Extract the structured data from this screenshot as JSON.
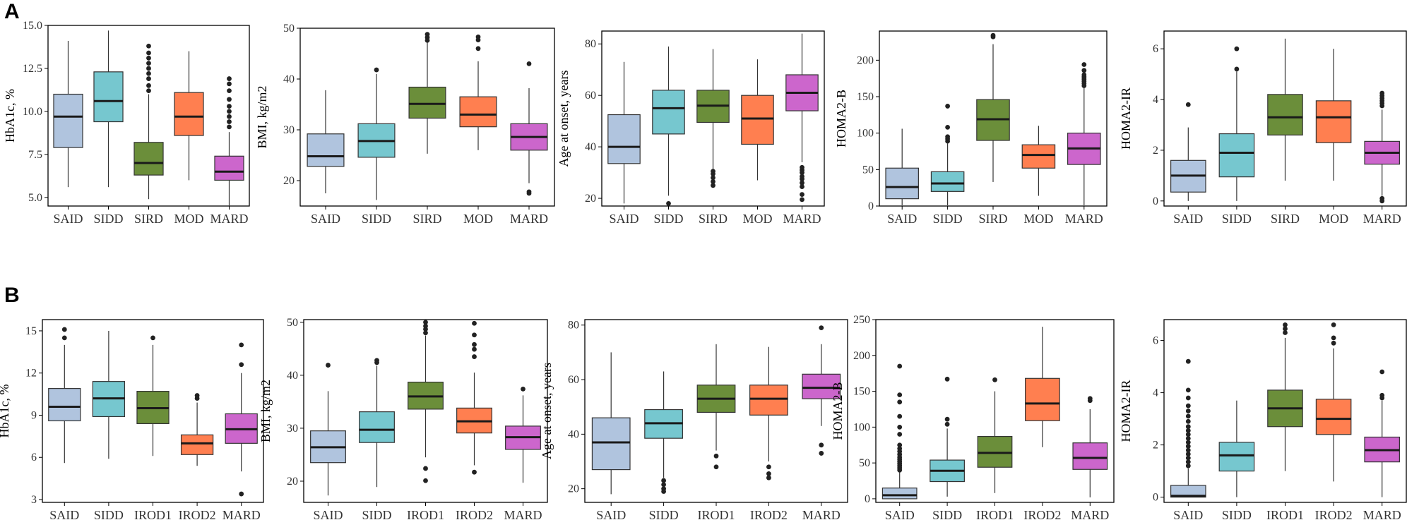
{
  "panels": [
    {
      "letter": "A"
    },
    {
      "letter": "B"
    }
  ],
  "colors": {
    "SAID": "#b0c4de",
    "SIDD": "#76c7cf",
    "SIRD": "#6b8e3a",
    "MOD": "#ff7f50",
    "MARD": "#cc66cc",
    "IROD1": "#6b8e3a",
    "IROD2": "#ff7f50",
    "outline": "#333333",
    "median": "#1a1a1a",
    "outlier": "#222222"
  },
  "chart_data": [
    {
      "type": "box",
      "panel": "A",
      "ylabel": "HbA1c, %",
      "ylim": [
        4.5,
        15.0
      ],
      "yticks": [
        5.0,
        7.5,
        10.0,
        12.5,
        15.0
      ],
      "tick_labels": [
        "5.0",
        "7.5",
        "10.0",
        "12.5",
        "15.0"
      ],
      "categories": [
        "SAID",
        "SIDD",
        "SIRD",
        "MOD",
        "MARD"
      ],
      "boxes": [
        {
          "min": 5.6,
          "q1": 7.9,
          "median": 9.7,
          "q3": 11.0,
          "max": 14.1,
          "outliers": []
        },
        {
          "min": 5.6,
          "q1": 9.4,
          "median": 10.6,
          "q3": 12.3,
          "max": 14.7,
          "outliers": []
        },
        {
          "min": 4.9,
          "q1": 6.3,
          "median": 7.0,
          "q3": 8.2,
          "max": 11.0,
          "outliers": [
            11.2,
            11.5,
            11.9,
            12.2,
            12.5,
            12.8,
            13.1,
            13.4,
            13.8
          ]
        },
        {
          "min": 6.0,
          "q1": 8.6,
          "median": 9.7,
          "q3": 11.1,
          "max": 13.5,
          "outliers": []
        },
        {
          "min": 4.5,
          "q1": 6.0,
          "median": 6.5,
          "q3": 7.4,
          "max": 8.8,
          "outliers": [
            9.1,
            9.4,
            9.7,
            10.0,
            10.3,
            10.7,
            11.2,
            11.6,
            11.9
          ]
        }
      ]
    },
    {
      "type": "box",
      "panel": "A",
      "ylabel": "BMI, kg/m2",
      "ylim": [
        15,
        50
      ],
      "yticks": [
        20,
        30,
        40,
        50
      ],
      "tick_labels": [
        "20",
        "30",
        "40",
        "50"
      ],
      "categories": [
        "SAID",
        "SIDD",
        "SIRD",
        "MOD",
        "MARD"
      ],
      "boxes": [
        {
          "min": 17.5,
          "q1": 22.8,
          "median": 24.8,
          "q3": 29.2,
          "max": 37.8,
          "outliers": []
        },
        {
          "min": 16.2,
          "q1": 24.6,
          "median": 27.8,
          "q3": 31.2,
          "max": 41.0,
          "outliers": [
            41.8
          ]
        },
        {
          "min": 25.3,
          "q1": 32.3,
          "median": 35.1,
          "q3": 38.4,
          "max": 47.2,
          "outliers": [
            47.6,
            48.2,
            48.8
          ]
        },
        {
          "min": 26.0,
          "q1": 30.6,
          "median": 33.0,
          "q3": 36.5,
          "max": 43.5,
          "outliers": [
            46.0,
            47.7,
            48.3
          ]
        },
        {
          "min": 19.5,
          "q1": 26.0,
          "median": 28.6,
          "q3": 31.2,
          "max": 38.2,
          "outliers": [
            17.5,
            17.8,
            43.0
          ]
        }
      ]
    },
    {
      "type": "box",
      "panel": "A",
      "ylabel": "Age at onset, years",
      "ylim": [
        17,
        85
      ],
      "yticks": [
        20,
        40,
        60,
        80
      ],
      "tick_labels": [
        "20",
        "40",
        "60",
        "80"
      ],
      "categories": [
        "SAID",
        "SIDD",
        "SIRD",
        "MOD",
        "MARD"
      ],
      "boxes": [
        {
          "min": 18.0,
          "q1": 33.5,
          "median": 40.0,
          "q3": 52.5,
          "max": 73.0,
          "outliers": []
        },
        {
          "min": 21.0,
          "q1": 45.0,
          "median": 55.0,
          "q3": 62.0,
          "max": 79.0,
          "outliers": [
            18.0
          ]
        },
        {
          "min": 31.0,
          "q1": 49.5,
          "median": 56.0,
          "q3": 62.0,
          "max": 78.0,
          "outliers": [
            25.0,
            26.5,
            28.0,
            29.5,
            30.5
          ]
        },
        {
          "min": 27.0,
          "q1": 41.0,
          "median": 51.0,
          "q3": 60.0,
          "max": 74.0,
          "outliers": []
        },
        {
          "min": 34.0,
          "q1": 54.0,
          "median": 61.0,
          "q3": 68.0,
          "max": 84.0,
          "outliers": [
            19.5,
            21.5,
            24.5,
            26.0,
            27.5,
            28.5,
            30.0,
            31.0,
            32.0
          ]
        }
      ]
    },
    {
      "type": "box",
      "panel": "A",
      "ylabel": "HOMA2-B",
      "ylim": [
        0,
        240
      ],
      "yticks": [
        0,
        50,
        100,
        150,
        200
      ],
      "tick_labels": [
        "0",
        "50",
        "100",
        "150",
        "200"
      ],
      "categories": [
        "SAID",
        "SIDD",
        "SIRD",
        "MOD",
        "MARD"
      ],
      "boxes": [
        {
          "min": 1.0,
          "q1": 10.0,
          "median": 26.0,
          "q3": 52.0,
          "max": 106.0,
          "outliers": []
        },
        {
          "min": 1.0,
          "q1": 20.0,
          "median": 31.0,
          "q3": 47.0,
          "max": 86.0,
          "outliers": [
            89.0,
            92.0,
            95.0,
            108.0,
            137.0
          ]
        },
        {
          "min": 33.0,
          "q1": 90.0,
          "median": 119.0,
          "q3": 146.0,
          "max": 222.0,
          "outliers": [
            232.0,
            234.0
          ]
        },
        {
          "min": 14.0,
          "q1": 52.0,
          "median": 70.0,
          "q3": 84.0,
          "max": 110.0,
          "outliers": []
        },
        {
          "min": 1.0,
          "q1": 57.0,
          "median": 79.0,
          "q3": 100.0,
          "max": 162.0,
          "outliers": [
            165.0,
            168.0,
            171.0,
            174.0,
            177.0,
            180.0,
            186.0,
            194.0
          ]
        }
      ]
    },
    {
      "type": "box",
      "panel": "A",
      "ylabel": "HOMA2-IR",
      "ylim": [
        -0.2,
        6.7
      ],
      "yticks": [
        0,
        2,
        4,
        6
      ],
      "tick_labels": [
        "0",
        "2",
        "4",
        "6"
      ],
      "categories": [
        "SAID",
        "SIDD",
        "SIRD",
        "MOD",
        "MARD"
      ],
      "boxes": [
        {
          "min": 0.0,
          "q1": 0.35,
          "median": 1.0,
          "q3": 1.6,
          "max": 2.9,
          "outliers": [
            3.8
          ]
        },
        {
          "min": 0.0,
          "q1": 0.95,
          "median": 1.9,
          "q3": 2.65,
          "max": 5.1,
          "outliers": [
            5.2,
            6.0
          ]
        },
        {
          "min": 0.8,
          "q1": 2.6,
          "median": 3.3,
          "q3": 4.2,
          "max": 6.4,
          "outliers": []
        },
        {
          "min": 0.8,
          "q1": 2.3,
          "median": 3.3,
          "q3": 3.95,
          "max": 6.0,
          "outliers": []
        },
        {
          "min": 0.2,
          "q1": 1.45,
          "median": 1.9,
          "q3": 2.35,
          "max": 3.6,
          "outliers": [
            0.0,
            0.1,
            3.75,
            3.85,
            3.95,
            4.05,
            4.15,
            4.25
          ]
        }
      ]
    },
    {
      "type": "box",
      "panel": "B",
      "ylabel": "HbA1c, %",
      "ylim": [
        2.8,
        15.8
      ],
      "yticks": [
        3,
        6,
        9,
        12,
        15
      ],
      "tick_labels": [
        "3",
        "6",
        "9",
        "12",
        "15"
      ],
      "categories": [
        "SAID",
        "SIDD",
        "IROD1",
        "IROD2",
        "MARD"
      ],
      "boxes": [
        {
          "min": 5.6,
          "q1": 8.6,
          "median": 9.6,
          "q3": 10.9,
          "max": 14.0,
          "outliers": [
            14.5,
            15.1
          ]
        },
        {
          "min": 5.9,
          "q1": 8.9,
          "median": 10.2,
          "q3": 11.4,
          "max": 15.0,
          "outliers": []
        },
        {
          "min": 6.1,
          "q1": 8.4,
          "median": 9.5,
          "q3": 10.7,
          "max": 14.0,
          "outliers": [
            14.5
          ]
        },
        {
          "min": 5.4,
          "q1": 6.2,
          "median": 7.0,
          "q3": 7.6,
          "max": 9.9,
          "outliers": [
            10.2,
            10.4
          ]
        },
        {
          "min": 5.0,
          "q1": 7.0,
          "median": 8.0,
          "q3": 9.1,
          "max": 12.0,
          "outliers": [
            3.4,
            12.6,
            14.0
          ]
        }
      ]
    },
    {
      "type": "box",
      "panel": "B",
      "ylabel": "BMI, kg/m2",
      "ylim": [
        16,
        50.5
      ],
      "yticks": [
        20,
        30,
        40,
        50
      ],
      "tick_labels": [
        "20",
        "30",
        "40",
        "50"
      ],
      "categories": [
        "SAID",
        "SIDD",
        "IROD1",
        "IROD2",
        "MARD"
      ],
      "boxes": [
        {
          "min": 17.3,
          "q1": 23.5,
          "median": 26.4,
          "q3": 29.5,
          "max": 37.0,
          "outliers": [
            41.9
          ]
        },
        {
          "min": 18.9,
          "q1": 27.3,
          "median": 29.7,
          "q3": 33.1,
          "max": 41.8,
          "outliers": [
            42.4,
            42.8
          ]
        },
        {
          "min": 24.5,
          "q1": 33.6,
          "median": 36.0,
          "q3": 38.7,
          "max": 47.5,
          "outliers": [
            20.1,
            22.4,
            48.0,
            48.7,
            49.3,
            50.0
          ]
        },
        {
          "min": 23.0,
          "q1": 29.1,
          "median": 31.3,
          "q3": 33.8,
          "max": 40.5,
          "outliers": [
            21.7,
            43.5,
            44.9,
            45.8,
            47.6,
            49.8
          ]
        },
        {
          "min": 19.7,
          "q1": 26.0,
          "median": 28.3,
          "q3": 30.4,
          "max": 36.2,
          "outliers": [
            37.4
          ]
        }
      ]
    },
    {
      "type": "box",
      "panel": "B",
      "ylabel": "Age at onset, years",
      "ylim": [
        15,
        82
      ],
      "yticks": [
        20,
        40,
        60,
        80
      ],
      "tick_labels": [
        "20",
        "40",
        "60",
        "80"
      ],
      "categories": [
        "SAID",
        "SIDD",
        "IROD1",
        "IROD2",
        "MARD"
      ],
      "boxes": [
        {
          "min": 18.0,
          "q1": 27.0,
          "median": 37.0,
          "q3": 46.0,
          "max": 70.0,
          "outliers": []
        },
        {
          "min": 24.0,
          "q1": 38.5,
          "median": 44.0,
          "q3": 49.0,
          "max": 63.0,
          "outliers": [
            19.0,
            20.0,
            21.5,
            23.0
          ]
        },
        {
          "min": 34.0,
          "q1": 48.0,
          "median": 53.0,
          "q3": 58.0,
          "max": 73.0,
          "outliers": [
            28.0,
            32.0
          ]
        },
        {
          "min": 30.0,
          "q1": 47.0,
          "median": 53.0,
          "q3": 58.0,
          "max": 72.0,
          "outliers": [
            24.0,
            25.5,
            28.0
          ]
        },
        {
          "min": 43.0,
          "q1": 53.0,
          "median": 57.0,
          "q3": 62.0,
          "max": 73.0,
          "outliers": [
            33.0,
            36.0,
            79.0
          ]
        }
      ]
    },
    {
      "type": "box",
      "panel": "B",
      "ylabel": "HOMA2-B",
      "ylim": [
        -5,
        250
      ],
      "yticks": [
        0,
        50,
        100,
        150,
        200,
        250
      ],
      "tick_labels": [
        "0",
        "50",
        "100",
        "150",
        "200",
        "250"
      ],
      "categories": [
        "SAID",
        "SIDD",
        "IROD1",
        "IROD2",
        "MARD"
      ],
      "boxes": [
        {
          "min": 0.0,
          "q1": 0.0,
          "median": 5.0,
          "q3": 15.0,
          "max": 37.0,
          "outliers": [
            40.0,
            43.0,
            46.0,
            49.0,
            52.0,
            55.0,
            58.0,
            62.0,
            66.0,
            70.0,
            75.0,
            90.0,
            100.0,
            115.0,
            135.0,
            145.0,
            185.0
          ]
        },
        {
          "min": 3.0,
          "q1": 24.0,
          "median": 39.0,
          "q3": 54.0,
          "max": 98.0,
          "outliers": [
            104.0,
            111.0,
            167.0
          ]
        },
        {
          "min": 8.0,
          "q1": 44.0,
          "median": 64.0,
          "q3": 87.0,
          "max": 150.0,
          "outliers": [
            166.0
          ]
        },
        {
          "min": 72.0,
          "q1": 109.0,
          "median": 133.0,
          "q3": 168.0,
          "max": 240.0,
          "outliers": []
        },
        {
          "min": 2.0,
          "q1": 41.0,
          "median": 57.0,
          "q3": 78.0,
          "max": 125.0,
          "outliers": [
            137.0,
            140.0
          ]
        }
      ]
    },
    {
      "type": "box",
      "panel": "B",
      "ylabel": "HOMA2-IR",
      "ylim": [
        -0.2,
        6.8
      ],
      "yticks": [
        0,
        2,
        4,
        6
      ],
      "tick_labels": [
        "0",
        "2",
        "4",
        "6"
      ],
      "categories": [
        "SAID",
        "SIDD",
        "IROD1",
        "IROD2",
        "MARD"
      ],
      "boxes": [
        {
          "min": 0.0,
          "q1": 0.0,
          "median": 0.05,
          "q3": 0.45,
          "max": 1.1,
          "outliers": [
            1.2,
            1.35,
            1.5,
            1.65,
            1.8,
            1.95,
            2.1,
            2.25,
            2.4,
            2.55,
            2.7,
            2.9,
            3.1,
            3.3,
            3.5,
            3.8,
            4.1,
            5.2
          ]
        },
        {
          "min": 0.0,
          "q1": 1.0,
          "median": 1.6,
          "q3": 2.1,
          "max": 3.7,
          "outliers": []
        },
        {
          "min": 1.0,
          "q1": 2.7,
          "median": 3.4,
          "q3": 4.1,
          "max": 6.1,
          "outliers": [
            6.3,
            6.45,
            6.6
          ]
        },
        {
          "min": 0.6,
          "q1": 2.4,
          "median": 3.0,
          "q3": 3.75,
          "max": 5.7,
          "outliers": [
            5.9,
            6.1,
            6.6
          ]
        },
        {
          "min": 0.0,
          "q1": 1.35,
          "median": 1.8,
          "q3": 2.3,
          "max": 3.7,
          "outliers": [
            3.8,
            3.9,
            4.8
          ]
        }
      ]
    }
  ]
}
